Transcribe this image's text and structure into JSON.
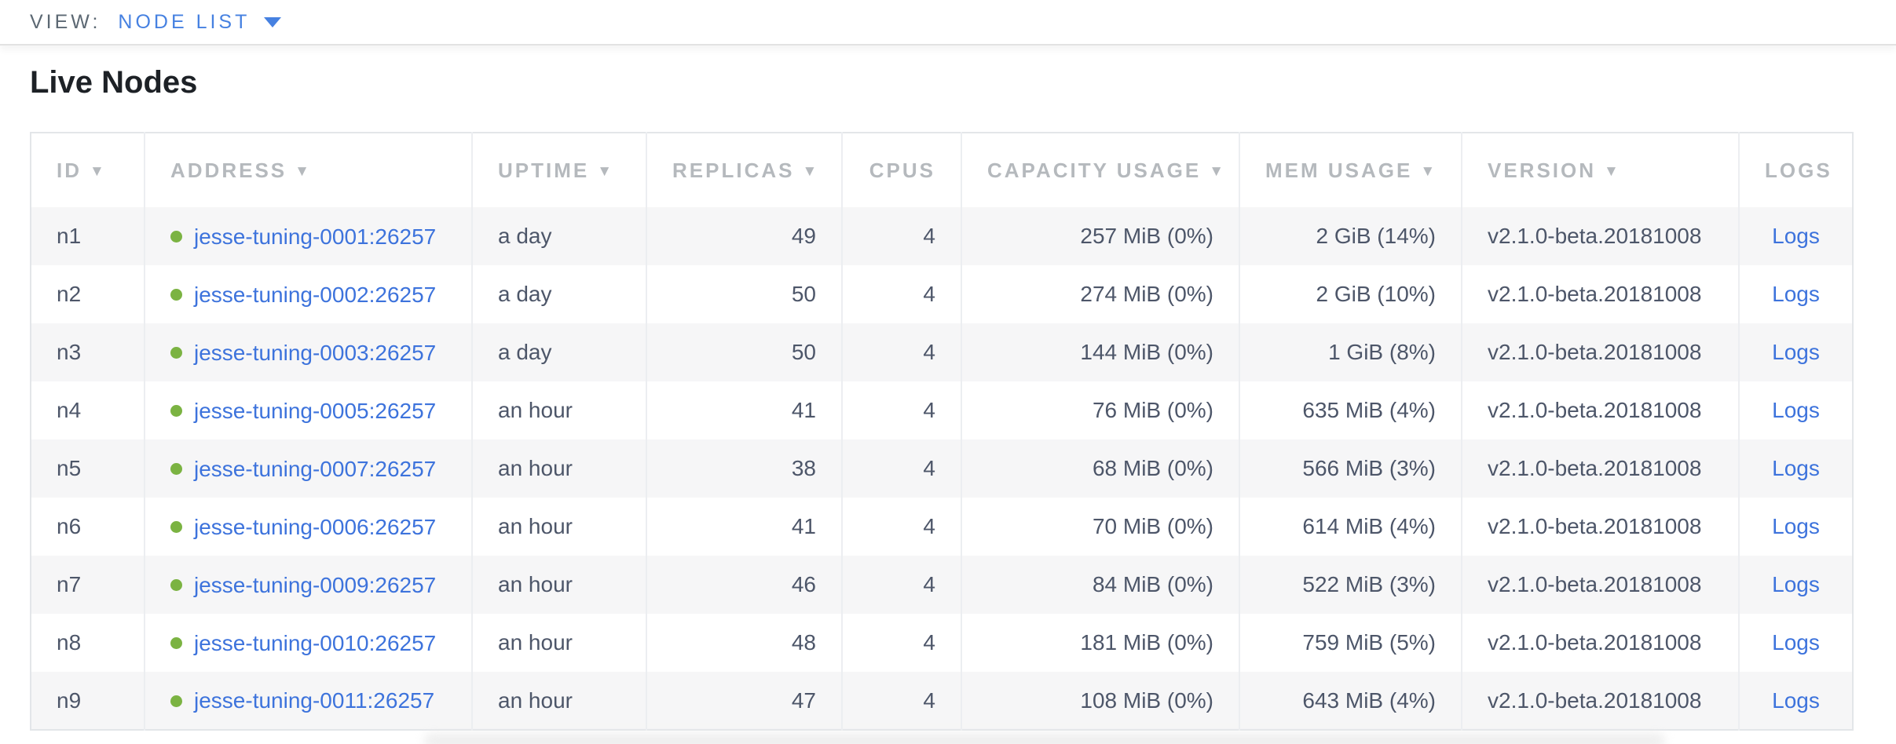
{
  "view_bar": {
    "label": "VIEW:",
    "selected": "NODE LIST"
  },
  "page": {
    "title": "Live Nodes"
  },
  "table": {
    "columns": [
      {
        "key": "id",
        "label": "ID",
        "sortable": true,
        "align": "left"
      },
      {
        "key": "address",
        "label": "ADDRESS",
        "sortable": true,
        "align": "left"
      },
      {
        "key": "uptime",
        "label": "UPTIME",
        "sortable": true,
        "align": "left"
      },
      {
        "key": "replicas",
        "label": "REPLICAS",
        "sortable": true,
        "align": "right"
      },
      {
        "key": "cpus",
        "label": "CPUS",
        "sortable": false,
        "align": "right"
      },
      {
        "key": "capacity",
        "label": "CAPACITY USAGE",
        "sortable": true,
        "align": "right"
      },
      {
        "key": "mem",
        "label": "MEM USAGE",
        "sortable": true,
        "align": "right"
      },
      {
        "key": "version",
        "label": "VERSION",
        "sortable": true,
        "align": "left"
      },
      {
        "key": "logs",
        "label": "LOGS",
        "sortable": false,
        "align": "center"
      }
    ],
    "rows": [
      {
        "id": "n1",
        "status": "live",
        "address": "jesse-tuning-0001:26257",
        "uptime": "a day",
        "replicas": "49",
        "cpus": "4",
        "capacity": "257 MiB (0%)",
        "mem": "2 GiB (14%)",
        "version": "v2.1.0-beta.20181008",
        "logs": "Logs"
      },
      {
        "id": "n2",
        "status": "live",
        "address": "jesse-tuning-0002:26257",
        "uptime": "a day",
        "replicas": "50",
        "cpus": "4",
        "capacity": "274 MiB (0%)",
        "mem": "2 GiB (10%)",
        "version": "v2.1.0-beta.20181008",
        "logs": "Logs"
      },
      {
        "id": "n3",
        "status": "live",
        "address": "jesse-tuning-0003:26257",
        "uptime": "a day",
        "replicas": "50",
        "cpus": "4",
        "capacity": "144 MiB (0%)",
        "mem": "1 GiB (8%)",
        "version": "v2.1.0-beta.20181008",
        "logs": "Logs"
      },
      {
        "id": "n4",
        "status": "live",
        "address": "jesse-tuning-0005:26257",
        "uptime": "an hour",
        "replicas": "41",
        "cpus": "4",
        "capacity": "76 MiB (0%)",
        "mem": "635 MiB (4%)",
        "version": "v2.1.0-beta.20181008",
        "logs": "Logs"
      },
      {
        "id": "n5",
        "status": "live",
        "address": "jesse-tuning-0007:26257",
        "uptime": "an hour",
        "replicas": "38",
        "cpus": "4",
        "capacity": "68 MiB (0%)",
        "mem": "566 MiB (3%)",
        "version": "v2.1.0-beta.20181008",
        "logs": "Logs"
      },
      {
        "id": "n6",
        "status": "live",
        "address": "jesse-tuning-0006:26257",
        "uptime": "an hour",
        "replicas": "41",
        "cpus": "4",
        "capacity": "70 MiB (0%)",
        "mem": "614 MiB (4%)",
        "version": "v2.1.0-beta.20181008",
        "logs": "Logs"
      },
      {
        "id": "n7",
        "status": "live",
        "address": "jesse-tuning-0009:26257",
        "uptime": "an hour",
        "replicas": "46",
        "cpus": "4",
        "capacity": "84 MiB (0%)",
        "mem": "522 MiB (3%)",
        "version": "v2.1.0-beta.20181008",
        "logs": "Logs"
      },
      {
        "id": "n8",
        "status": "live",
        "address": "jesse-tuning-0010:26257",
        "uptime": "an hour",
        "replicas": "48",
        "cpus": "4",
        "capacity": "181 MiB (0%)",
        "mem": "759 MiB (5%)",
        "version": "v2.1.0-beta.20181008",
        "logs": "Logs"
      },
      {
        "id": "n9",
        "status": "live",
        "address": "jesse-tuning-0011:26257",
        "uptime": "an hour",
        "replicas": "47",
        "cpus": "4",
        "capacity": "108 MiB (0%)",
        "mem": "643 MiB (4%)",
        "version": "v2.1.0-beta.20181008",
        "logs": "Logs"
      }
    ]
  },
  "icons": {
    "sort_desc": "▼",
    "dropdown_caret": "caret-down",
    "node_status": "green-dot"
  },
  "colors": {
    "link_blue": "#3d73dc",
    "select_blue": "#4681e1",
    "live_green": "#7bb342",
    "header_gray": "#b5b9bd",
    "cell_text": "#4d5669",
    "view_label": "#5c6873",
    "heading": "#1d2126"
  }
}
